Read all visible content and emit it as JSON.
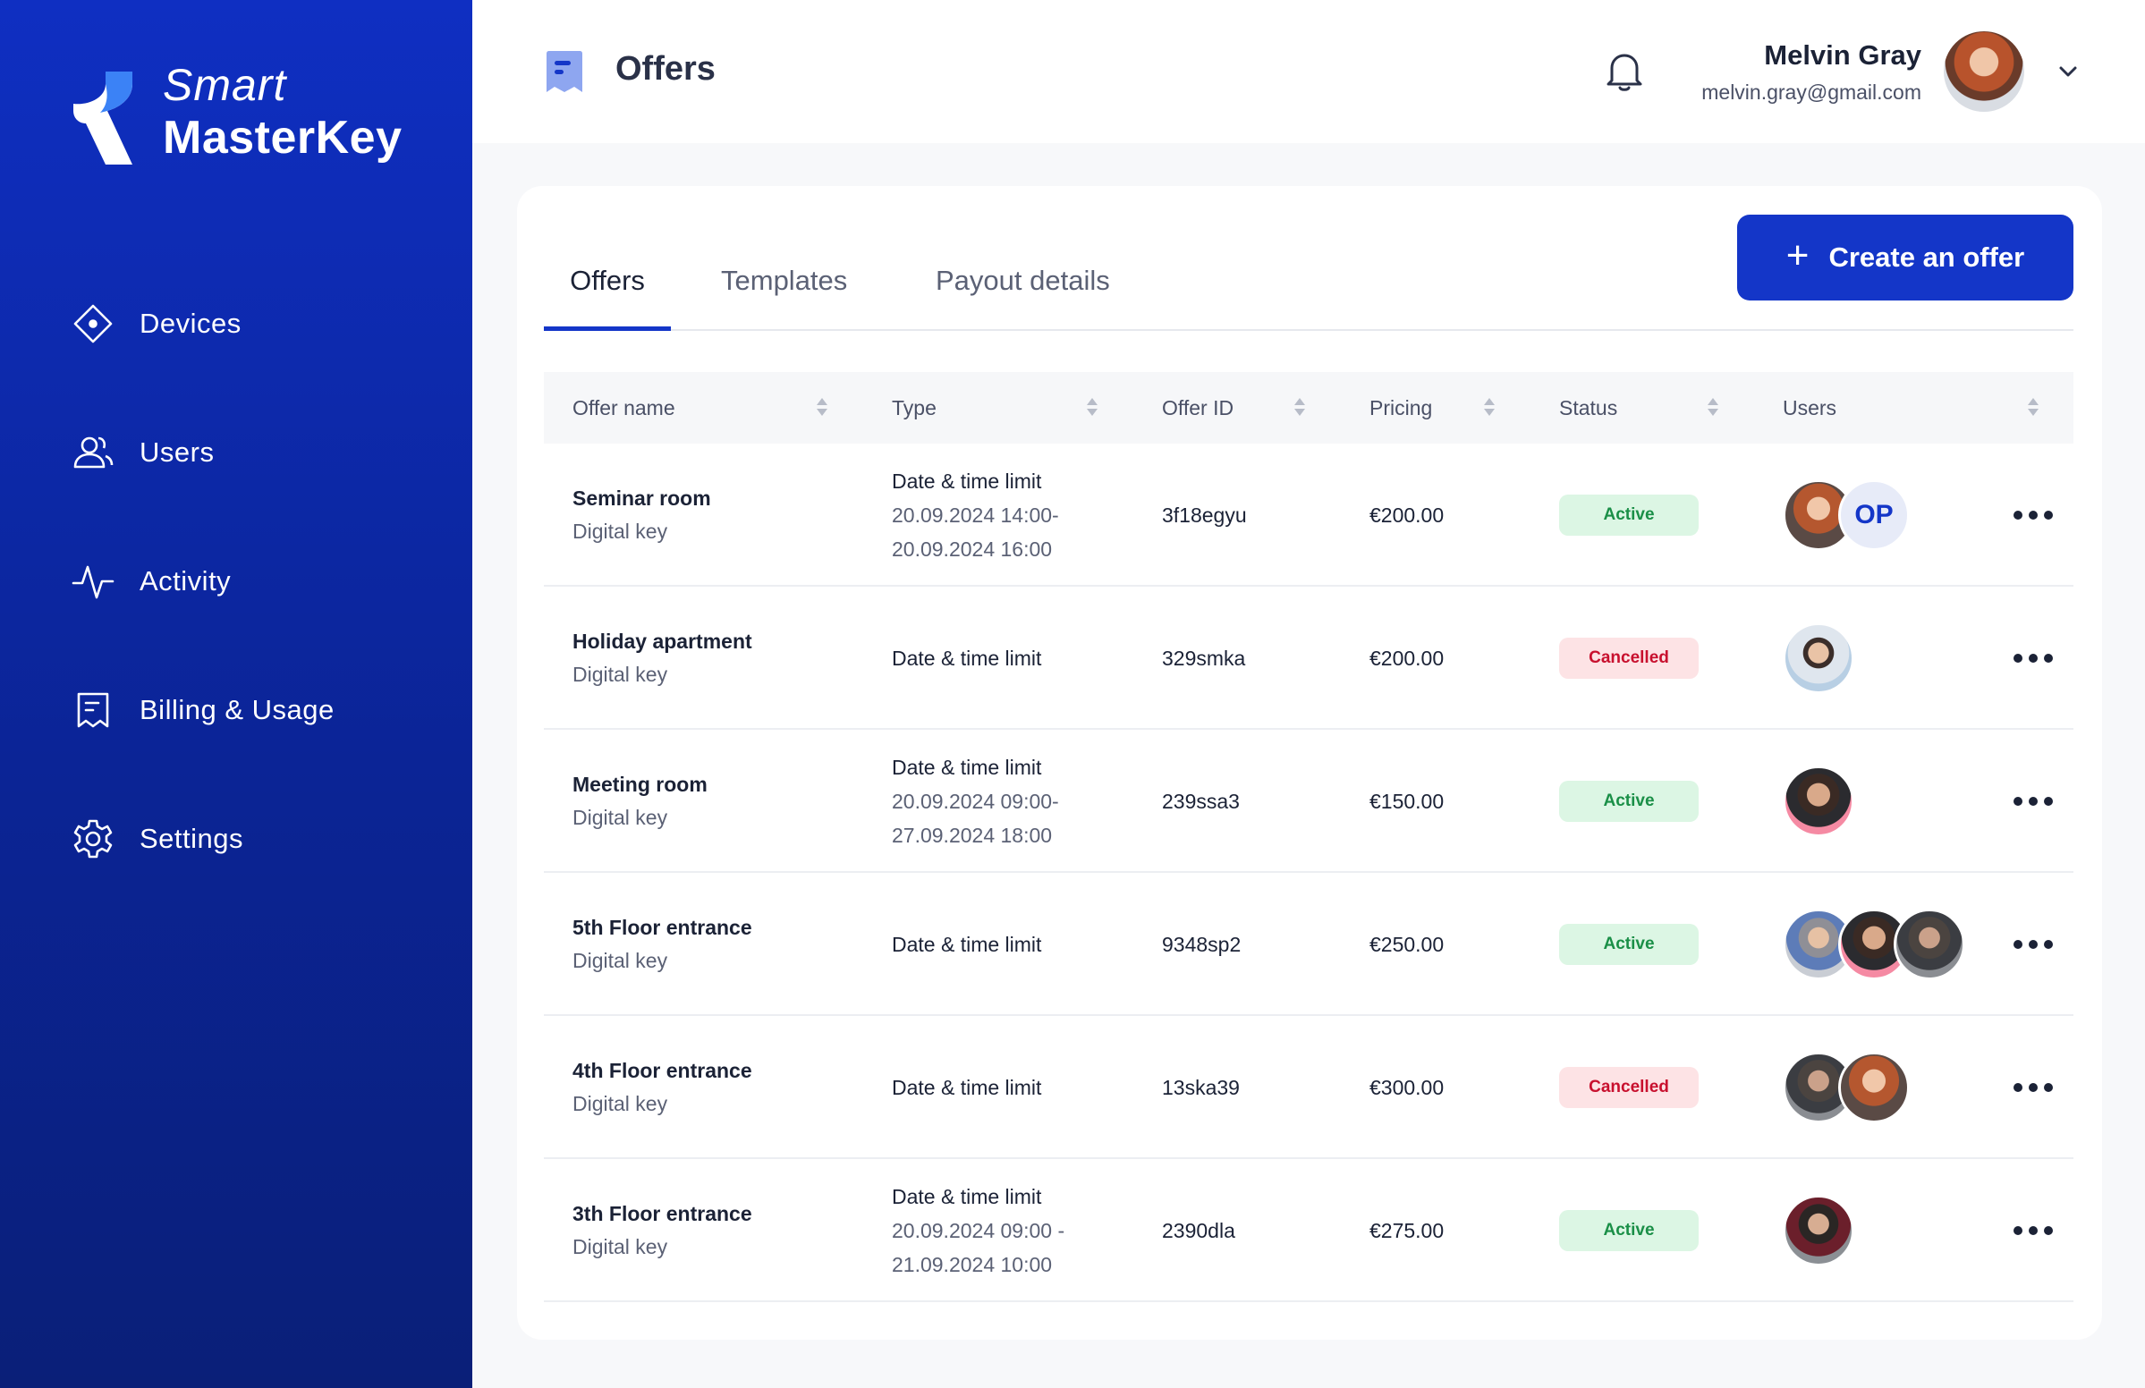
{
  "brand": {
    "line1": "Smart",
    "line2": "MasterKey"
  },
  "sidebar": {
    "items": [
      {
        "label": "Devices",
        "icon": "diamond-icon"
      },
      {
        "label": "Users",
        "icon": "users-icon"
      },
      {
        "label": "Activity",
        "icon": "activity-icon"
      },
      {
        "label": "Billing & Usage",
        "icon": "receipt-icon"
      },
      {
        "label": "Settings",
        "icon": "gear-icon"
      }
    ]
  },
  "header": {
    "title": "Offers",
    "user": {
      "name": "Melvin Gray",
      "email": "melvin.gray@gmail.com"
    }
  },
  "tabs": [
    {
      "label": "Offers",
      "active": true
    },
    {
      "label": "Templates",
      "active": false
    },
    {
      "label": "Payout details",
      "active": false
    }
  ],
  "create_button": {
    "label": "Create an offer"
  },
  "table": {
    "columns": [
      "Offer name",
      "Type",
      "Offer ID",
      "Pricing",
      "Status",
      "Users"
    ],
    "rows": [
      {
        "name": "Seminar room",
        "kind": "Digital key",
        "type": "Date & time limit",
        "range1": "20.09.2024 14:00-",
        "range2": "20.09.2024 16:00",
        "id": "3f18egyu",
        "price": "€200.00",
        "status": "Active",
        "initials": "OP"
      },
      {
        "name": "Holiday apartment",
        "kind": "Digital key",
        "type": "Date & time limit",
        "range1": "",
        "range2": "",
        "id": "329smka",
        "price": "€200.00",
        "status": "Cancelled",
        "initials": ""
      },
      {
        "name": "Meeting room",
        "kind": "Digital key",
        "type": "Date & time limit",
        "range1": "20.09.2024 09:00-",
        "range2": "27.09.2024 18:00",
        "id": "239ssa3",
        "price": "€150.00",
        "status": "Active",
        "initials": ""
      },
      {
        "name": "5th Floor entrance",
        "kind": "Digital key",
        "type": "Date & time limit",
        "range1": "",
        "range2": "",
        "id": "9348sp2",
        "price": "€250.00",
        "status": "Active",
        "initials": ""
      },
      {
        "name": "4th Floor entrance",
        "kind": "Digital key",
        "type": "Date & time limit",
        "range1": "",
        "range2": "",
        "id": "13ska39",
        "price": "€300.00",
        "status": "Cancelled",
        "initials": ""
      },
      {
        "name": "3th Floor entrance",
        "kind": "Digital key",
        "type": "Date & time limit",
        "range1": "20.09.2024 09:00 -",
        "range2": "21.09.2024 10:00",
        "id": "2390dla",
        "price": "€275.00",
        "status": "Active",
        "initials": ""
      }
    ]
  }
}
